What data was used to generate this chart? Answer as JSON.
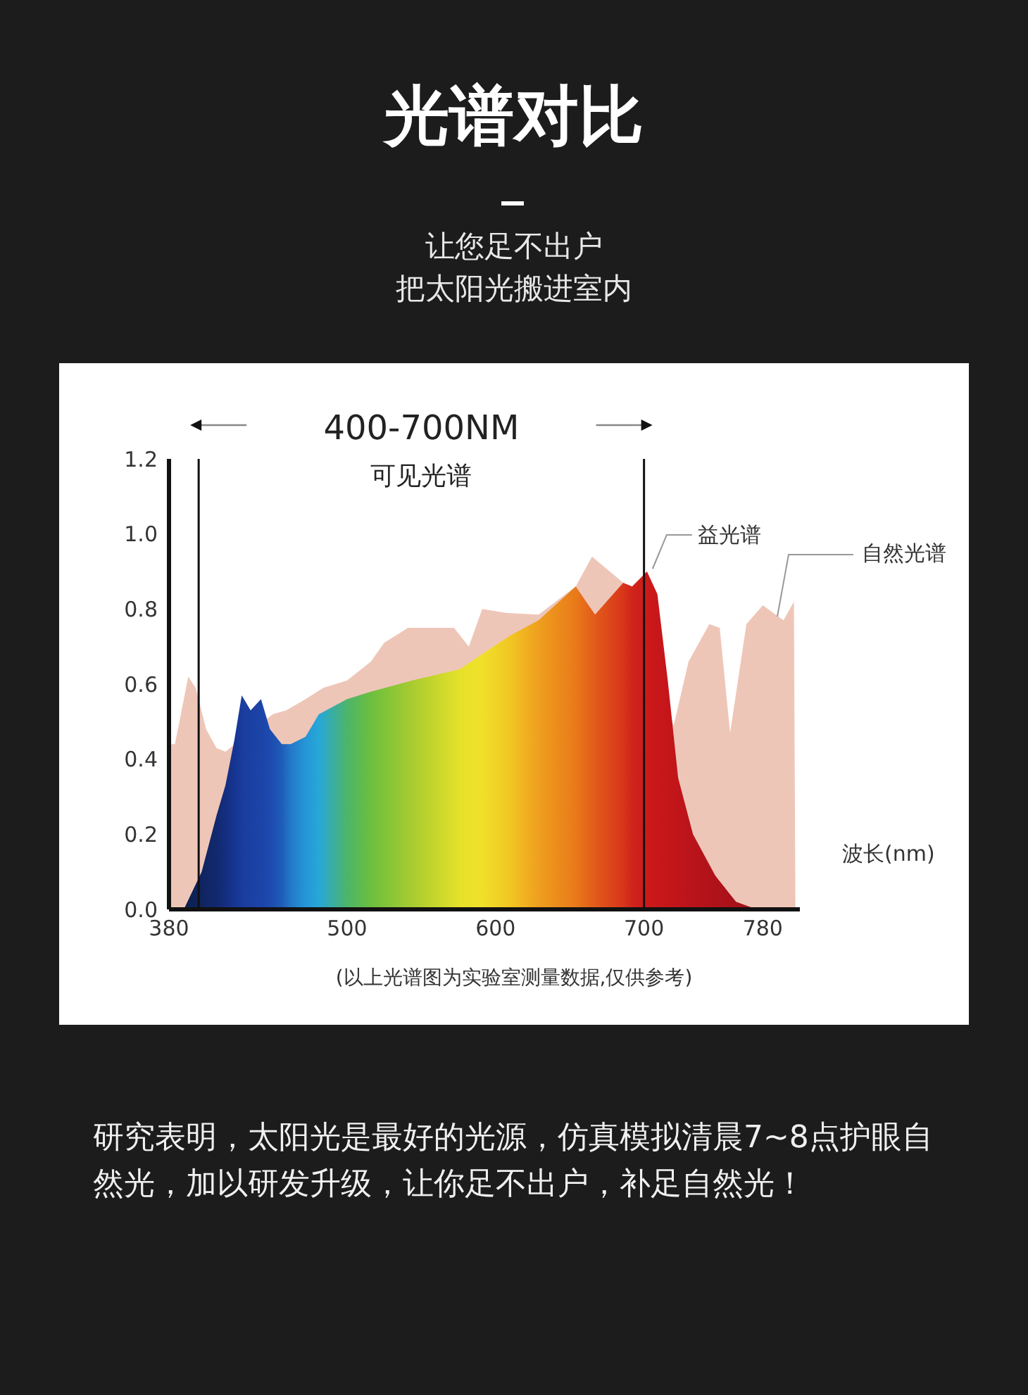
{
  "chart_data": {
    "type": "area",
    "title": "光谱对比",
    "subtitle": "让您足不出户",
    "xlabel": "波长(nm)",
    "annotations": [
      "把太阳光搬进室内",
      "400-700NM",
      "可见光谱",
      "(以上光谱图为实验室测量数据,仅供参考)",
      "研究表明，太阳光是最好的光源，仿真模拟清晨7~8点护眼自然光，加以研发升级，让你足不出户，补足自然光！"
    ],
    "xlim": [
      380,
      805
    ],
    "xticks": [
      380,
      500,
      600,
      700,
      780
    ],
    "ylim": [
      0,
      1.2
    ],
    "yticks": [
      {
        "value": 0,
        "label": "0.0"
      },
      0.2,
      0.4,
      0.6,
      0.8,
      {
        "value": 1,
        "label": "1.0"
      },
      1.2
    ],
    "legend": false,
    "ref_lines": [
      {
        "axis": "x",
        "value": 400,
        "color": "#111111"
      },
      {
        "axis": "x",
        "value": 700,
        "color": "#111111"
      }
    ],
    "series": [
      {
        "name": "自然光谱",
        "color": "#eec6b8",
        "x": [
          380,
          384,
          393,
          398,
          405,
          412,
          418,
          450,
          459,
          472,
          484,
          500,
          516,
          525,
          541,
          560,
          572,
          582,
          591,
          607,
          629,
          654,
          665,
          673,
          686,
          720,
          730,
          744,
          751,
          758,
          769,
          780,
          794,
          801,
          802
        ],
        "values": [
          0.44,
          0.44,
          0.62,
          0.59,
          0.48,
          0.43,
          0.42,
          0.52,
          0.53,
          0.56,
          0.59,
          0.61,
          0.66,
          0.71,
          0.75,
          0.75,
          0.75,
          0.7,
          0.8,
          0.79,
          0.785,
          0.86,
          0.94,
          null,
          0.87,
          0.49,
          0.66,
          0.76,
          0.75,
          0.47,
          0.76,
          0.81,
          0.77,
          0.82,
          0
        ]
      },
      {
        "name": "益光谱",
        "x": [
          390,
          402,
          412,
          418,
          424,
          429,
          435,
          442,
          448,
          456,
          462,
          472,
          481,
          500,
          516,
          544,
          576,
          591,
          610,
          629,
          654,
          667,
          686,
          692,
          702,
          709,
          716,
          723,
          733,
          748,
          762,
          776
        ],
        "values": [
          0,
          0.1,
          0.25,
          0.33,
          0.45,
          0.57,
          0.53,
          0.56,
          0.48,
          0.44,
          0.44,
          0.46,
          0.52,
          0.56,
          0.58,
          0.61,
          0.64,
          0.68,
          0.73,
          0.77,
          0.86,
          0.785,
          0.87,
          0.86,
          0.9,
          0.84,
          0.61,
          0.35,
          0.2,
          0.09,
          0.02,
          0
        ],
        "colors": [
          "#0b1f4a",
          "#0f2460",
          "#12296e",
          "#142e80",
          "#163591",
          "#1a3c9e",
          "#1b40a3",
          "#1c44a8",
          "#1d4aaf",
          "#1f5cb8",
          "#2378c8",
          "#2596d6",
          "#27a7d8",
          "#4cb56a",
          "#6cbf3e",
          "#a8cc30",
          "#e6e12a",
          "#f0e02a",
          "#f1c623",
          "#ef9f1e",
          "#e97a1a",
          "#e25a1a",
          "#d8361a",
          "#d0241b",
          "#cc1a1a",
          "#c8171a",
          "#c4161a",
          "#c0151a",
          "#b8141a",
          "#b0121a",
          "#a8111a",
          "#a0101a"
        ]
      }
    ]
  }
}
